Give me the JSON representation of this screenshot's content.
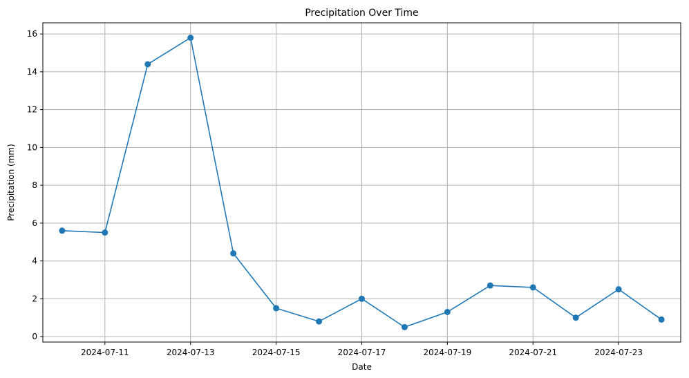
{
  "chart_data": {
    "type": "line",
    "title": "Precipitation Over Time",
    "xlabel": "Date",
    "ylabel": "Precipitation (mm)",
    "x": [
      "2024-07-10",
      "2024-07-11",
      "2024-07-12",
      "2024-07-13",
      "2024-07-14",
      "2024-07-15",
      "2024-07-16",
      "2024-07-17",
      "2024-07-18",
      "2024-07-19",
      "2024-07-20",
      "2024-07-21",
      "2024-07-22",
      "2024-07-23",
      "2024-07-24"
    ],
    "series": [
      {
        "values": [
          5.6,
          5.5,
          14.4,
          15.8,
          4.4,
          1.5,
          0.8,
          2.0,
          0.5,
          1.3,
          2.7,
          2.6,
          1.0,
          2.5,
          0.9
        ],
        "color": "#1f77b4",
        "marker": "circle"
      }
    ],
    "xlim": [
      "2024-07-09T13:12",
      "2024-07-24T10:48"
    ],
    "ylim": [
      -0.29,
      16.59
    ],
    "x_ticks": [
      "2024-07-11",
      "2024-07-13",
      "2024-07-15",
      "2024-07-17",
      "2024-07-19",
      "2024-07-21",
      "2024-07-23"
    ],
    "y_ticks": [
      0,
      2,
      4,
      6,
      8,
      10,
      12,
      14,
      16
    ],
    "grid": true,
    "legend": "none"
  }
}
